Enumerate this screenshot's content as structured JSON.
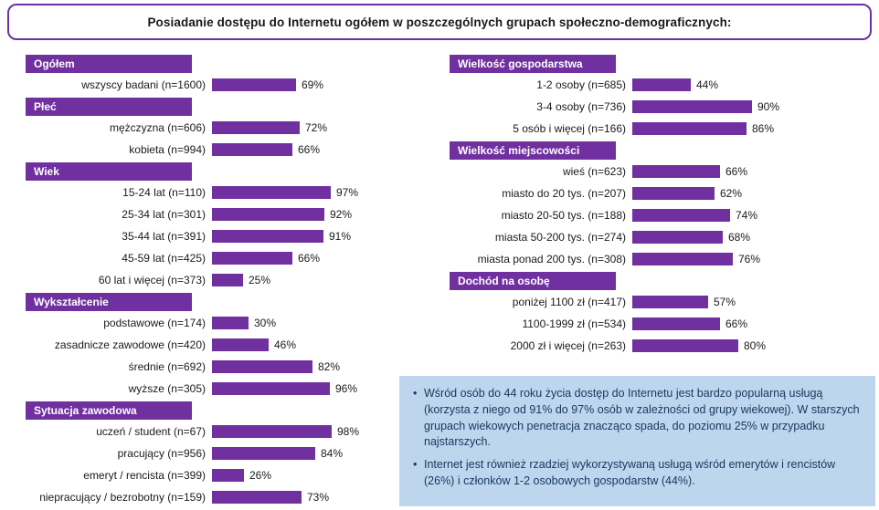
{
  "title": "Posiadanie dostępu do Internetu ogółem w poszczególnych grupach społeczno-demograficznych:",
  "colors": {
    "accent_purple": "#7030A0",
    "notes_background": "#BDD6EE",
    "notes_text": "#17375E"
  },
  "chart_data": {
    "type": "bar",
    "orientation": "horizontal",
    "unit": "%",
    "value_range": [
      0,
      100
    ],
    "grid": false,
    "legend": false,
    "columns": [
      {
        "sections": [
          {
            "header": "Ogółem",
            "rows": [
              {
                "label": "wszyscy badani (n=1600)",
                "value": 69
              }
            ]
          },
          {
            "header": "Płeć",
            "rows": [
              {
                "label": "mężczyzna (n=606)",
                "value": 72
              },
              {
                "label": "kobieta (n=994)",
                "value": 66
              }
            ]
          },
          {
            "header": "Wiek",
            "rows": [
              {
                "label": "15-24 lat (n=110)",
                "value": 97
              },
              {
                "label": "25-34 lat (n=301)",
                "value": 92
              },
              {
                "label": "35-44 lat (n=391)",
                "value": 91
              },
              {
                "label": "45-59 lat (n=425)",
                "value": 66
              },
              {
                "label": "60 lat i więcej (n=373)",
                "value": 25
              }
            ]
          },
          {
            "header": "Wykształcenie",
            "rows": [
              {
                "label": "podstawowe (n=174)",
                "value": 30
              },
              {
                "label": "zasadnicze zawodowe (n=420)",
                "value": 46
              },
              {
                "label": "średnie (n=692)",
                "value": 82
              },
              {
                "label": "wyższe (n=305)",
                "value": 96
              }
            ]
          },
          {
            "header": "Sytuacja zawodowa",
            "rows": [
              {
                "label": "uczeń / student (n=67)",
                "value": 98
              },
              {
                "label": "pracujący (n=956)",
                "value": 84
              },
              {
                "label": "emeryt / rencista (n=399)",
                "value": 26
              },
              {
                "label": "niepracujący / bezrobotny (n=159)",
                "value": 73
              }
            ]
          }
        ]
      },
      {
        "sections": [
          {
            "header": "Wielkość gospodarstwa",
            "rows": [
              {
                "label": "1-2 osoby (n=685)",
                "value": 44
              },
              {
                "label": "3-4 osoby (n=736)",
                "value": 90
              },
              {
                "label": "5 osób i więcej (n=166)",
                "value": 86
              }
            ]
          },
          {
            "header": "Wielkość miejscowości",
            "rows": [
              {
                "label": "wieś (n=623)",
                "value": 66
              },
              {
                "label": "miasto do 20 tys. (n=207)",
                "value": 62
              },
              {
                "label": "miasto 20-50 tys. (n=188)",
                "value": 74
              },
              {
                "label": "miasta 50-200 tys. (n=274)",
                "value": 68
              },
              {
                "label": "miasta ponad 200 tys. (n=308)",
                "value": 76
              }
            ]
          },
          {
            "header": "Dochód na osobę",
            "rows": [
              {
                "label": "poniżej 1100 zł (n=417)",
                "value": 57
              },
              {
                "label": "1100-1999 zł (n=534)",
                "value": 66
              },
              {
                "label": "2000 zł i więcej (n=263)",
                "value": 80
              }
            ]
          }
        ]
      }
    ]
  },
  "notes": {
    "bullets": [
      "Wśród osób do 44 roku życia dostęp do Internetu jest bardzo popularną usługą (korzysta z niego od 91% do 97% osób w zależności od grupy wiekowej). W starszych grupach wiekowych penetracja znacząco spada, do poziomu 25% w przypadku najstarszych.",
      "Internet jest również rzadziej wykorzystywaną usługą wśród emerytów i rencistów (26%) i członków 1-2 osobowych gospodarstw (44%)."
    ]
  }
}
